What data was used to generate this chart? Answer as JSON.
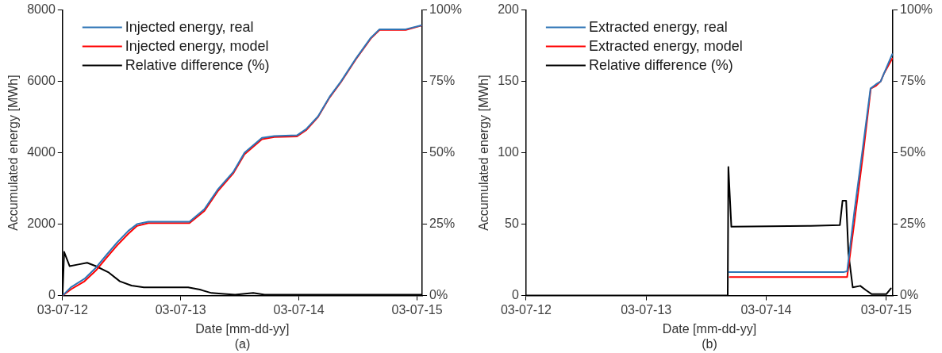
{
  "chart_data": [
    {
      "type": "line",
      "xlabel": "Date [mm-dd-yy]",
      "ylabel": "Accumulated energy [MWh]",
      "annotations": [
        "(a)"
      ],
      "legend": "top left",
      "grid": false,
      "marker": "none",
      "line_style": "solid",
      "xlim": [
        "2012-03-07",
        "2015-03-23"
      ],
      "xticks": [
        {
          "value": "2012-03-07",
          "label": "03-07-12"
        },
        {
          "value": "2013-03-07",
          "label": "03-07-13"
        },
        {
          "value": "2014-03-07",
          "label": "03-07-14"
        },
        {
          "value": "2015-03-07",
          "label": "03-07-15"
        }
      ],
      "ylim": [
        0,
        8000
      ],
      "yticks": [
        0,
        2000,
        4000,
        6000,
        8000
      ],
      "y2lim": [
        0,
        100
      ],
      "y2ticks": [
        {
          "value": 0,
          "label": "0%"
        },
        {
          "value": 25,
          "label": "25%"
        },
        {
          "value": 50,
          "label": "50%"
        },
        {
          "value": 75,
          "label": "75%"
        },
        {
          "value": 100,
          "label": "100%"
        }
      ],
      "series": [
        {
          "name": "Injected energy, real",
          "color": "#2e75b6",
          "x": [
            "2012-03-07",
            "2012-04-03",
            "2012-05-14",
            "2012-06-18",
            "2012-07-20",
            "2012-08-22",
            "2012-09-26",
            "2012-10-23",
            "2012-11-27",
            "2013-04-03",
            "2013-05-19",
            "2013-07-01",
            "2013-08-16",
            "2013-09-20",
            "2013-11-13",
            "2013-12-21",
            "2014-03-01",
            "2014-03-29",
            "2014-05-05",
            "2014-06-10",
            "2014-07-15",
            "2014-08-30",
            "2014-10-15",
            "2014-11-11",
            "2015-01-31",
            "2015-03-20"
          ],
          "values": [
            0,
            240,
            470,
            780,
            1130,
            1480,
            1810,
            2000,
            2070,
            2070,
            2420,
            2990,
            3460,
            4000,
            4420,
            4470,
            4490,
            4660,
            5020,
            5570,
            6000,
            6640,
            7220,
            7460,
            7460,
            7570
          ]
        },
        {
          "name": "Injected energy, model",
          "color": "#ff0000",
          "x": [
            "2012-03-07",
            "2012-04-03",
            "2012-05-14",
            "2012-06-18",
            "2012-07-20",
            "2012-08-22",
            "2012-09-26",
            "2012-10-23",
            "2012-11-27",
            "2013-04-03",
            "2013-05-19",
            "2013-07-01",
            "2013-08-16",
            "2013-09-20",
            "2013-11-13",
            "2013-12-21",
            "2014-03-01",
            "2014-03-29",
            "2014-05-05",
            "2014-06-10",
            "2014-07-15",
            "2014-08-30",
            "2014-10-15",
            "2014-11-11",
            "2015-01-31",
            "2015-03-20"
          ],
          "values": [
            0,
            180,
            400,
            700,
            1050,
            1400,
            1730,
            1950,
            2030,
            2030,
            2370,
            2940,
            3420,
            3960,
            4380,
            4440,
            4460,
            4630,
            5000,
            5550,
            5980,
            6620,
            7200,
            7440,
            7440,
            7560
          ]
        },
        {
          "name": "Relative difference (%)",
          "color": "#000000",
          "axis": "y2",
          "x": [
            "2012-03-07",
            "2012-03-12",
            "2012-03-29",
            "2012-04-25",
            "2012-05-22",
            "2012-06-18",
            "2012-07-26",
            "2012-08-31",
            "2012-10-06",
            "2012-11-13",
            "2013-03-30",
            "2013-05-05",
            "2013-06-10",
            "2013-07-18",
            "2013-08-22",
            "2013-10-17",
            "2013-11-21",
            "2014-02-23",
            "2014-08-22",
            "2015-03-20"
          ],
          "values": [
            0,
            15.3,
            10.3,
            10.9,
            11.5,
            10.3,
            8.2,
            5,
            3.5,
            2.9,
            2.9,
            2.1,
            0.9,
            0.6,
            0.3,
            0.9,
            0.3,
            0.3,
            0.3,
            0.3
          ]
        }
      ]
    },
    {
      "type": "line",
      "xlabel": "Date [mm-dd-yy]",
      "ylabel": "Accumulated energy [MWh]",
      "annotations": [
        "(b)"
      ],
      "legend": "top left",
      "grid": false,
      "marker": "none",
      "line_style": "solid",
      "xlim": [
        "2012-03-07",
        "2015-03-27"
      ],
      "xticks": [
        {
          "value": "2012-03-07",
          "label": "03-07-12"
        },
        {
          "value": "2013-03-07",
          "label": "03-07-13"
        },
        {
          "value": "2014-03-07",
          "label": "03-07-14"
        },
        {
          "value": "2015-03-07",
          "label": "03-07-15"
        }
      ],
      "ylim": [
        0,
        200
      ],
      "yticks": [
        0,
        50,
        100,
        150,
        200
      ],
      "y2lim": [
        0,
        100
      ],
      "y2ticks": [
        {
          "value": 0,
          "label": "0%"
        },
        {
          "value": 25,
          "label": "25%"
        },
        {
          "value": 50,
          "label": "50%"
        },
        {
          "value": 75,
          "label": "75%"
        },
        {
          "value": 100,
          "label": "100%"
        }
      ],
      "series": [
        {
          "name": "Extracted energy, real",
          "color": "#2e75b6",
          "x": [
            "2013-11-14",
            "2014-10-30",
            "2014-11-08",
            "2014-11-30",
            "2014-12-26",
            "2015-01-18",
            "2015-02-04",
            "2015-02-18",
            "2015-02-27",
            "2015-03-25"
          ],
          "values": [
            16.5,
            16.5,
            17,
            59,
            104,
            145,
            148,
            150,
            155,
            169
          ]
        },
        {
          "name": "Extracted energy, model",
          "color": "#ff0000",
          "x": [
            "2013-11-16",
            "2014-11-08",
            "2014-12-02",
            "2014-12-27",
            "2015-01-19",
            "2015-02-04",
            "2015-02-18",
            "2015-02-27",
            "2015-03-25"
          ],
          "values": [
            13,
            13,
            55,
            100,
            145,
            147,
            150,
            155,
            166
          ]
        },
        {
          "name": "Relative difference (%)",
          "color": "#000000",
          "axis": "y2",
          "x": [
            "2012-03-07",
            "2013-11-10",
            "2013-11-12",
            "2013-11-21",
            "2014-07-20",
            "2014-10-17",
            "2014-10-25",
            "2014-11-05",
            "2014-11-12",
            "2014-11-25",
            "2014-12-18",
            "2015-01-04",
            "2015-01-22",
            "2015-03-07",
            "2015-03-21"
          ],
          "values": [
            0,
            0,
            45,
            24.1,
            24.4,
            24.7,
            33.2,
            33.2,
            14.7,
            2.9,
            3.4,
            1.9,
            0.5,
            0.5,
            2.5
          ]
        }
      ]
    }
  ]
}
